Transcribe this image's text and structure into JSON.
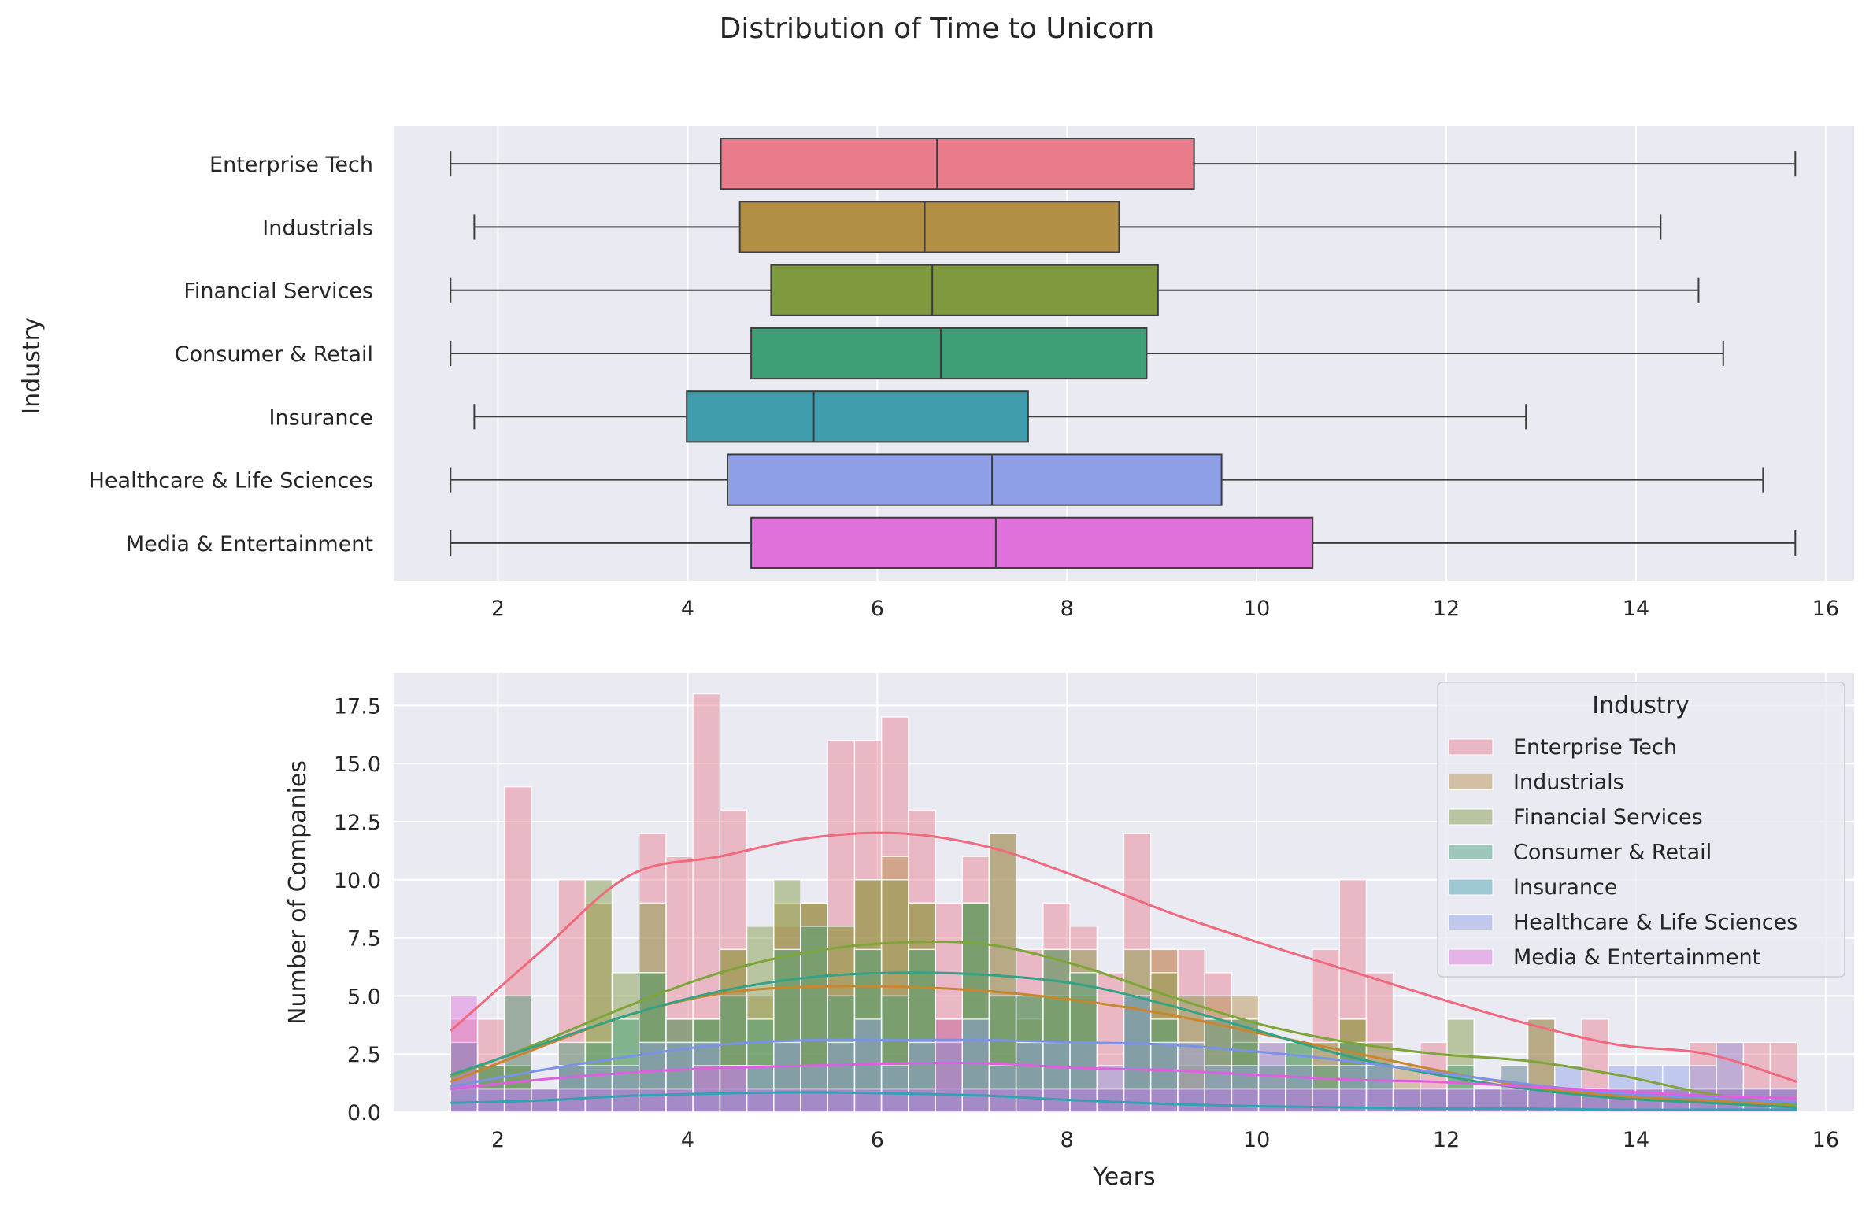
{
  "figure": {
    "title": "Distribution of Time to Unicorn"
  },
  "colors": {
    "background": "#ffffff",
    "axes_face": "#eaeaf2",
    "grid": "#ffffff",
    "box_edge": "#3d3d3d",
    "industries": [
      "#e87c8b",
      "#b38f45",
      "#7f9a3e",
      "#3e9e76",
      "#3f9dad",
      "#8fa0e8",
      "#e070db"
    ],
    "kde": [
      "#f0697e",
      "#c8862f",
      "#7ea538",
      "#33a287",
      "#34a0b4",
      "#7b93e6",
      "#e05ee0"
    ]
  },
  "chart_data": [
    {
      "type": "box",
      "title": "",
      "xlabel": "",
      "ylabel": "Industry",
      "xlim": [
        0.9,
        16.3
      ],
      "xticks": [
        2,
        4,
        6,
        8,
        10,
        12,
        14,
        16
      ],
      "xtick_labels": [
        "2",
        "4",
        "6",
        "8",
        "10",
        "12",
        "14",
        "16"
      ],
      "grid": true,
      "categories": [
        "Enterprise Tech",
        "Industrials",
        "Financial Services",
        "Consumer & Retail",
        "Insurance",
        "Healthcare & Life Sciences",
        "Media & Entertainment"
      ],
      "series": [
        {
          "name": "Enterprise Tech",
          "whisker_low": 1.5,
          "q1": 4.35,
          "median": 6.63,
          "q3": 9.34,
          "whisker_high": 15.68
        },
        {
          "name": "Industrials",
          "whisker_low": 1.75,
          "q1": 4.55,
          "median": 6.5,
          "q3": 8.55,
          "whisker_high": 14.26
        },
        {
          "name": "Financial Services",
          "whisker_low": 1.5,
          "q1": 4.88,
          "median": 6.58,
          "q3": 8.96,
          "whisker_high": 14.66
        },
        {
          "name": "Consumer & Retail",
          "whisker_low": 1.5,
          "q1": 4.67,
          "median": 6.67,
          "q3": 8.84,
          "whisker_high": 14.92
        },
        {
          "name": "Insurance",
          "whisker_low": 1.75,
          "q1": 3.99,
          "median": 5.33,
          "q3": 7.59,
          "whisker_high": 12.84
        },
        {
          "name": "Healthcare & Life Sciences",
          "whisker_low": 1.5,
          "q1": 4.42,
          "median": 7.21,
          "q3": 9.63,
          "whisker_high": 15.34
        },
        {
          "name": "Media & Entertainment",
          "whisker_low": 1.5,
          "q1": 4.67,
          "median": 7.25,
          "q3": 10.59,
          "whisker_high": 15.68
        }
      ]
    },
    {
      "type": "histogram",
      "title": "",
      "xlabel": "Years",
      "ylabel": "Number of Companies",
      "xlim": [
        0.9,
        16.3
      ],
      "ylim": [
        0,
        18.9
      ],
      "xticks": [
        2,
        4,
        6,
        8,
        10,
        12,
        14,
        16
      ],
      "xtick_labels": [
        "2",
        "4",
        "6",
        "8",
        "10",
        "12",
        "14",
        "16"
      ],
      "yticks": [
        0,
        2.5,
        5,
        7.5,
        10,
        12.5,
        15,
        17.5
      ],
      "ytick_labels": [
        "0.0",
        "2.5",
        "5.0",
        "7.5",
        "10.0",
        "12.5",
        "15.0",
        "17.5"
      ],
      "grid": true,
      "legend": {
        "title": "Industry",
        "placement": "top-right"
      },
      "bin_start": 1.5,
      "bin_width": 0.284,
      "series": [
        {
          "name": "Enterprise Tech",
          "counts": [
            4,
            4,
            14,
            0,
            10,
            0,
            0,
            12,
            11,
            18,
            13,
            0,
            8,
            9,
            16,
            16,
            17,
            13,
            9,
            11,
            12,
            7,
            9,
            8,
            6,
            12,
            7,
            7,
            6,
            4,
            3,
            0,
            7,
            10,
            6,
            0,
            3,
            0,
            0,
            0,
            4,
            0,
            4,
            0,
            0,
            0,
            3,
            3,
            3,
            3
          ],
          "kde": [
            3.5,
            6.9,
            10.2,
            11.0,
            11.8,
            12.0,
            11.4,
            10.1,
            8.6,
            7.3,
            6.1,
            4.9,
            3.8,
            2.9,
            2.5,
            1.3
          ]
        },
        {
          "name": "Industrials",
          "counts": [
            3,
            2,
            2,
            1,
            2,
            9,
            2,
            6,
            4,
            4,
            7,
            5,
            9,
            9,
            8,
            10,
            11,
            9,
            4,
            9,
            5,
            4,
            7,
            5,
            1,
            5,
            7,
            2,
            5,
            5,
            2,
            2,
            1,
            4,
            1,
            2,
            1,
            1,
            1,
            1,
            1,
            1,
            1,
            1,
            1,
            1,
            1,
            1,
            1,
            0
          ],
          "kde": [
            1.3,
            2.8,
            4.2,
            5.1,
            5.4,
            5.4,
            5.2,
            4.8,
            4.2,
            3.4,
            2.6,
            1.8,
            1.1,
            0.7,
            0.5,
            0.3
          ]
        },
        {
          "name": "Financial Services",
          "counts": [
            3,
            2,
            2,
            1,
            2,
            10,
            6,
            9,
            3,
            4,
            7,
            8,
            10,
            9,
            8,
            10,
            10,
            9,
            3,
            9,
            12,
            5,
            5,
            7,
            1,
            7,
            6,
            5,
            1,
            3,
            1,
            3,
            3,
            4,
            3,
            1,
            1,
            4,
            1,
            2,
            4,
            1,
            1,
            1,
            1,
            1,
            1,
            1,
            1,
            1
          ],
          "kde": [
            1.5,
            3.0,
            4.6,
            6.0,
            6.9,
            7.3,
            7.2,
            6.3,
            5.0,
            3.8,
            3.0,
            2.5,
            2.2,
            1.6,
            0.8,
            0.3
          ]
        },
        {
          "name": "Consumer & Retail",
          "counts": [
            3,
            2,
            5,
            1,
            3,
            3,
            4,
            6,
            4,
            4,
            5,
            4,
            7,
            8,
            5,
            7,
            5,
            7,
            3,
            9,
            5,
            5,
            7,
            6,
            1,
            5,
            4,
            1,
            4,
            4,
            2,
            3,
            2,
            3,
            2,
            1,
            1,
            2,
            1,
            1,
            1,
            1,
            1,
            1,
            1,
            1,
            1,
            1,
            1,
            1
          ],
          "kde": [
            1.6,
            2.9,
            4.2,
            5.2,
            5.8,
            6.0,
            5.9,
            5.5,
            4.6,
            3.5,
            2.4,
            1.6,
            1.0,
            0.6,
            0.4,
            0.2
          ]
        },
        {
          "name": "Insurance",
          "counts": [
            1,
            1,
            1,
            1,
            1,
            1,
            1,
            1,
            1,
            1,
            1,
            1,
            1,
            1,
            1,
            1,
            1,
            1,
            1,
            1,
            1,
            1,
            1,
            1,
            1,
            1,
            1,
            1,
            1,
            1,
            1,
            1,
            1,
            1,
            1,
            1,
            1,
            1,
            1,
            1,
            1,
            1,
            1,
            1,
            1,
            1,
            1,
            1,
            1,
            1
          ],
          "kde": [
            0.4,
            0.5,
            0.7,
            0.8,
            0.85,
            0.8,
            0.7,
            0.5,
            0.35,
            0.25,
            0.2,
            0.15,
            0.15,
            0.1,
            0.1,
            0.1
          ]
        },
        {
          "name": "Healthcare & Life Sciences",
          "counts": [
            3,
            1,
            1,
            1,
            2,
            2,
            2,
            3,
            3,
            3,
            2,
            2,
            3,
            2,
            3,
            4,
            2,
            3,
            3,
            4,
            2,
            3,
            3,
            3,
            2,
            5,
            3,
            3,
            2,
            2,
            3,
            2,
            1,
            2,
            2,
            1,
            1,
            1,
            1,
            2,
            1,
            2,
            1,
            2,
            2,
            2,
            2,
            3,
            1,
            1
          ],
          "kde": [
            1.1,
            1.8,
            2.4,
            2.9,
            3.1,
            3.1,
            3.1,
            3.0,
            2.9,
            2.6,
            2.2,
            1.7,
            1.2,
            0.8,
            0.6,
            0.4
          ]
        },
        {
          "name": "Media & Entertainment",
          "counts": [
            5,
            1,
            1,
            1,
            1,
            1,
            1,
            1,
            1,
            2,
            2,
            1,
            1,
            1,
            1,
            1,
            1,
            1,
            4,
            1,
            1,
            1,
            1,
            1,
            1,
            1,
            1,
            1,
            1,
            1,
            1,
            1,
            1,
            1,
            1,
            1,
            1,
            1,
            1,
            1,
            1,
            1,
            1,
            1,
            1,
            1,
            1,
            1,
            1,
            1
          ],
          "kde": [
            1.0,
            1.4,
            1.7,
            1.9,
            2.0,
            2.1,
            2.1,
            1.9,
            1.8,
            1.6,
            1.4,
            1.3,
            1.1,
            0.9,
            0.7,
            0.6
          ]
        }
      ]
    }
  ]
}
